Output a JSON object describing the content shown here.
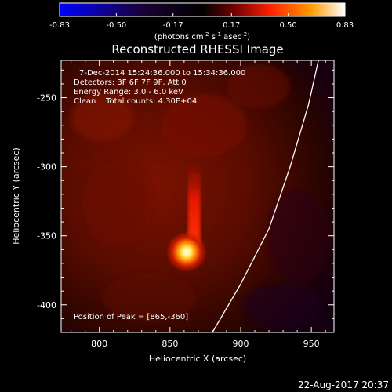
{
  "chart_data": {
    "type": "heatmap",
    "title": "Reconstructed RHESSI Image",
    "xlabel": "Heliocentric X (arcsec)",
    "ylabel": "Heliocentric Y (arcsec)",
    "xlim": [
      773,
      966
    ],
    "ylim": [
      -420,
      -223
    ],
    "x_ticks": [
      800,
      850,
      900,
      950
    ],
    "y_ticks": [
      -250,
      -300,
      -350,
      -400
    ],
    "colorbar": {
      "range": [
        -0.83,
        0.83
      ],
      "ticks": [
        "-0.83",
        "-0.50",
        "-0.17",
        "0.17",
        "0.50",
        "0.83"
      ],
      "tick_values": [
        -0.83,
        -0.5,
        -0.17,
        0.17,
        0.5,
        0.83
      ],
      "units_prefix": "(photons cm",
      "units_sup1": "-2",
      "units_mid": " s",
      "units_sup2": "-1",
      "units_mid2": " asec",
      "units_sup3": "-2",
      "units_suffix": ")",
      "colormap_stops": [
        "#0000ff",
        "#1a0033",
        "#000000",
        "#7a0000",
        "#ff2200",
        "#ff9900",
        "#ffffff"
      ]
    },
    "annotations": {
      "line1": "7-Dec-2014 15:24:36.000 to 15:34:36.000",
      "line2": "Detectors: 3F 6F 7F 9F, Att 0",
      "line3": "Energy Range: 3.0 - 6.0 keV",
      "line4": "Clean    Total counts: 4.30E+04",
      "peak": "Position of Peak = [865,-360]"
    },
    "peak": {
      "x": 865,
      "y": -360,
      "value": 0.83
    },
    "source_extension": {
      "x": 866,
      "y_from": -358,
      "y_to": -300
    },
    "limb_curve": [
      [
        880,
        -420
      ],
      [
        900,
        -385
      ],
      [
        920,
        -345
      ],
      [
        935,
        -300
      ],
      [
        948,
        -255
      ],
      [
        955,
        -223
      ]
    ]
  },
  "footer": {
    "timestamp": "22-Aug-2017 20:37"
  }
}
